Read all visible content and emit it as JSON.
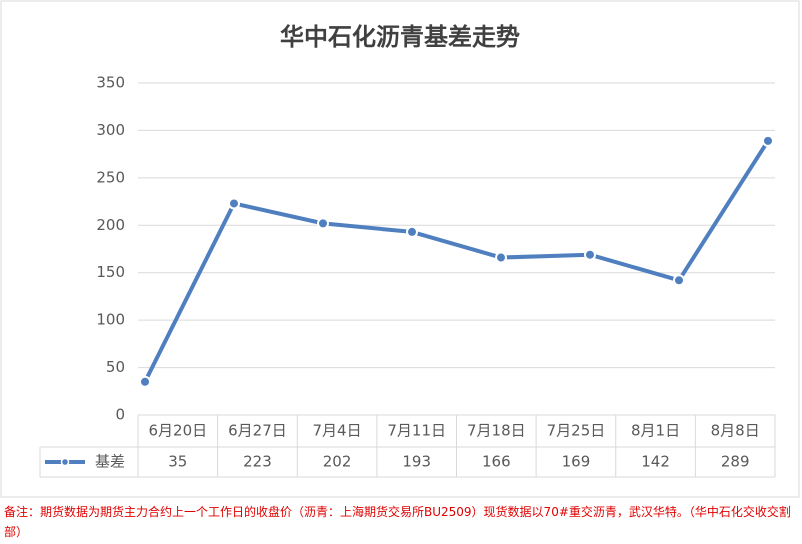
{
  "chart_data": {
    "type": "line",
    "title": "华中石化沥青基差走势",
    "categories": [
      "6月20日",
      "6月27日",
      "7月4日",
      "7月11日",
      "7月18日",
      "7月25日",
      "8月1日",
      "8月8日"
    ],
    "series": [
      {
        "name": "基差",
        "color": "#4f7fbf",
        "values": [
          35,
          223,
          202,
          193,
          166,
          169,
          142,
          289
        ]
      }
    ],
    "ylim": [
      0,
      350
    ],
    "yticks": [
      0,
      50,
      100,
      150,
      200,
      250,
      300,
      350
    ],
    "grid": true,
    "note": "备注：期货数据为期货主力合约上一个工作日的收盘价（沥青：上海期货交易所BU2509）现货数据以70#重交沥青，武汉华特。（华中石化交收交割部）"
  }
}
